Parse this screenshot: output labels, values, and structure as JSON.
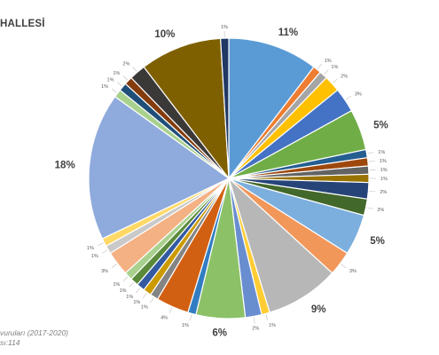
{
  "title": "HALLESİ",
  "footnote": {
    "line1": "vuruları (2017-2020)",
    "line2": "sı:114"
  },
  "chart_data": {
    "type": "pie",
    "title": "HALLESİ",
    "slices": [
      {
        "label": "11%",
        "value": 11,
        "color": "#5b9bd5"
      },
      {
        "label": "1%",
        "value": 1,
        "color": "#ed7d31"
      },
      {
        "label": "1%",
        "value": 1,
        "color": "#a5a5a5"
      },
      {
        "label": "2%",
        "value": 2,
        "color": "#ffc000"
      },
      {
        "label": "3%",
        "value": 3,
        "color": "#4472c4"
      },
      {
        "label": "5%",
        "value": 5,
        "color": "#70ad47"
      },
      {
        "label": "1%",
        "value": 1,
        "color": "#255e91"
      },
      {
        "label": "1%",
        "value": 1,
        "color": "#9e480e"
      },
      {
        "label": "1%",
        "value": 1,
        "color": "#636363"
      },
      {
        "label": "1%",
        "value": 1,
        "color": "#997300"
      },
      {
        "label": "2%",
        "value": 2,
        "color": "#264478"
      },
      {
        "label": "2%",
        "value": 2,
        "color": "#43682b"
      },
      {
        "label": "5%",
        "value": 5,
        "color": "#7cafdd"
      },
      {
        "label": "3%",
        "value": 3,
        "color": "#f1975a"
      },
      {
        "label": "9%",
        "value": 9,
        "color": "#b7b7b7"
      },
      {
        "label": "1%",
        "value": 1,
        "color": "#ffcd33"
      },
      {
        "label": "2%",
        "value": 2,
        "color": "#698ed0"
      },
      {
        "label": "6%",
        "value": 6,
        "color": "#8cc168"
      },
      {
        "label": "1%",
        "value": 1,
        "color": "#327dc2"
      },
      {
        "label": "4%",
        "value": 4,
        "color": "#d26012"
      },
      {
        "label": "1%",
        "value": 1,
        "color": "#848484"
      },
      {
        "label": "1%",
        "value": 1,
        "color": "#cc9a00"
      },
      {
        "label": "1%",
        "value": 1,
        "color": "#335aa1"
      },
      {
        "label": "1%",
        "value": 1,
        "color": "#5a8a39"
      },
      {
        "label": "1%",
        "value": 1,
        "color": "#a9d18e"
      },
      {
        "label": "3%",
        "value": 3,
        "color": "#f4b183"
      },
      {
        "label": "1%",
        "value": 1,
        "color": "#c9c9c9"
      },
      {
        "label": "1%",
        "value": 1,
        "color": "#ffd966"
      },
      {
        "label": "18%",
        "value": 18,
        "color": "#8faadc"
      },
      {
        "label": "1%",
        "value": 1,
        "color": "#a9d18e"
      },
      {
        "label": "1%",
        "value": 1,
        "color": "#1f4e79"
      },
      {
        "label": "1%",
        "value": 1,
        "color": "#843c0c"
      },
      {
        "label": "2%",
        "value": 2,
        "color": "#3b3838"
      },
      {
        "label": "10%",
        "value": 10,
        "color": "#7f6000"
      },
      {
        "label": "1%",
        "value": 1,
        "color": "#203864"
      }
    ]
  }
}
